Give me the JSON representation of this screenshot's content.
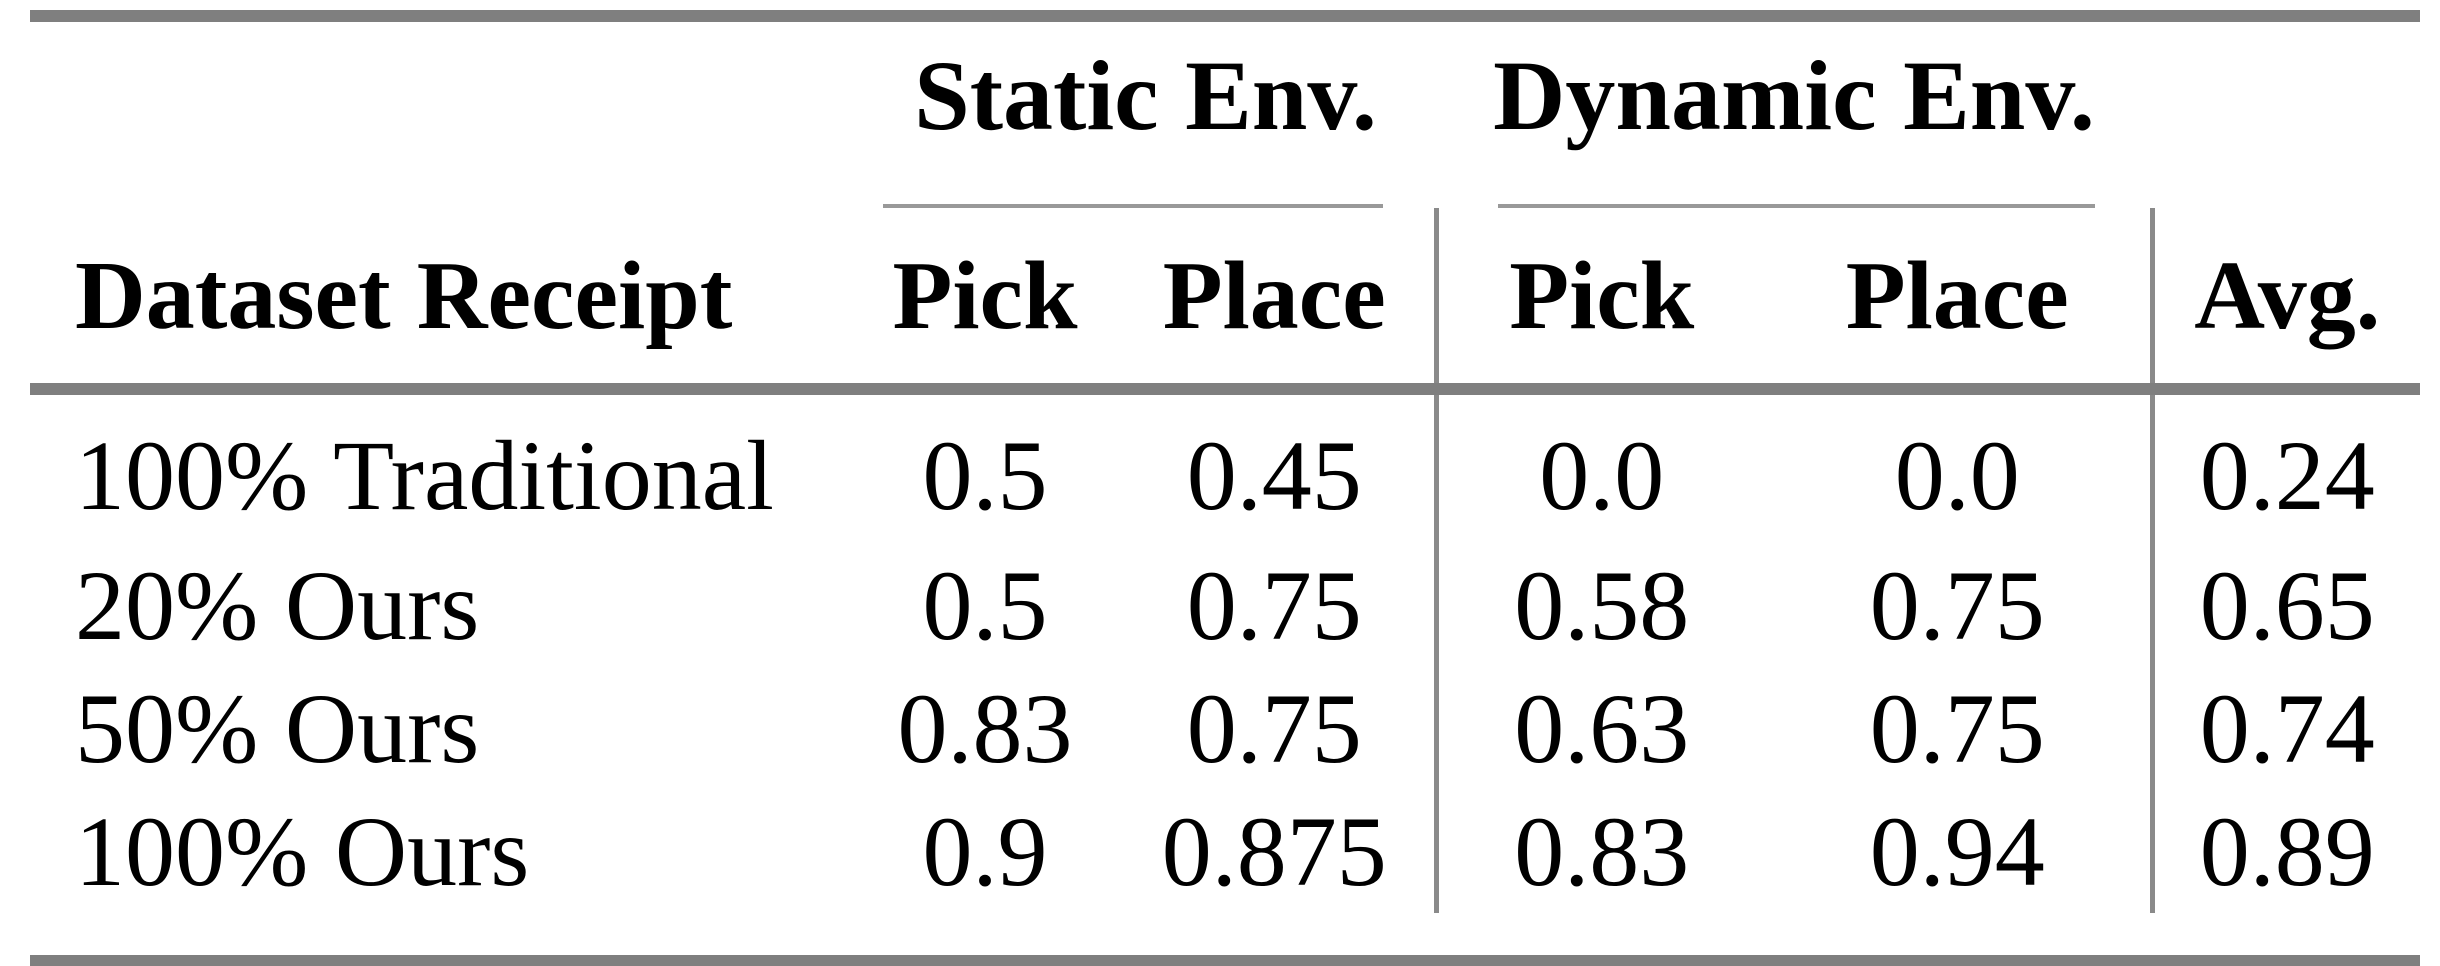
{
  "table": {
    "row_header_label": "Dataset Receipt",
    "groups": [
      {
        "label": "Static Env.",
        "columns": [
          "Pick",
          "Place"
        ]
      },
      {
        "label": "Dynamic Env.",
        "columns": [
          "Pick",
          "Place"
        ]
      }
    ],
    "avg_label": "Avg.",
    "rows": [
      {
        "label": "100% Traditional",
        "static_pick": "0.5",
        "static_place": "0.45",
        "dynamic_pick": "0.0",
        "dynamic_place": "0.0",
        "avg": "0.24"
      },
      {
        "label": "20% Ours",
        "static_pick": "0.5",
        "static_place": "0.75",
        "dynamic_pick": "0.58",
        "dynamic_place": "0.75",
        "avg": "0.65"
      },
      {
        "label": "50% Ours",
        "static_pick": "0.83",
        "static_place": "0.75",
        "dynamic_pick": "0.63",
        "dynamic_place": "0.75",
        "avg": "0.74"
      },
      {
        "label": "100% Ours",
        "static_pick": "0.9",
        "static_place": "0.875",
        "dynamic_pick": "0.83",
        "dynamic_place": "0.94",
        "avg": "0.89"
      }
    ]
  },
  "colors": {
    "rule_thick": "#7f7f7f",
    "rule_thin": "#999999",
    "text": "#000000",
    "background": "#ffffff"
  },
  "chart_data": {
    "type": "table",
    "column_groups": [
      "",
      "Static Env.",
      "Static Env.",
      "Dynamic Env.",
      "Dynamic Env.",
      ""
    ],
    "columns": [
      "Dataset Receipt",
      "Pick",
      "Place",
      "Pick",
      "Place",
      "Avg."
    ],
    "rows": [
      [
        "100% Traditional",
        0.5,
        0.45,
        0.0,
        0.0,
        0.24
      ],
      [
        "20% Ours",
        0.5,
        0.75,
        0.58,
        0.75,
        0.65
      ],
      [
        "50% Ours",
        0.83,
        0.75,
        0.63,
        0.75,
        0.74
      ],
      [
        "100% Ours",
        0.9,
        0.875,
        0.83,
        0.94,
        0.89
      ]
    ]
  }
}
